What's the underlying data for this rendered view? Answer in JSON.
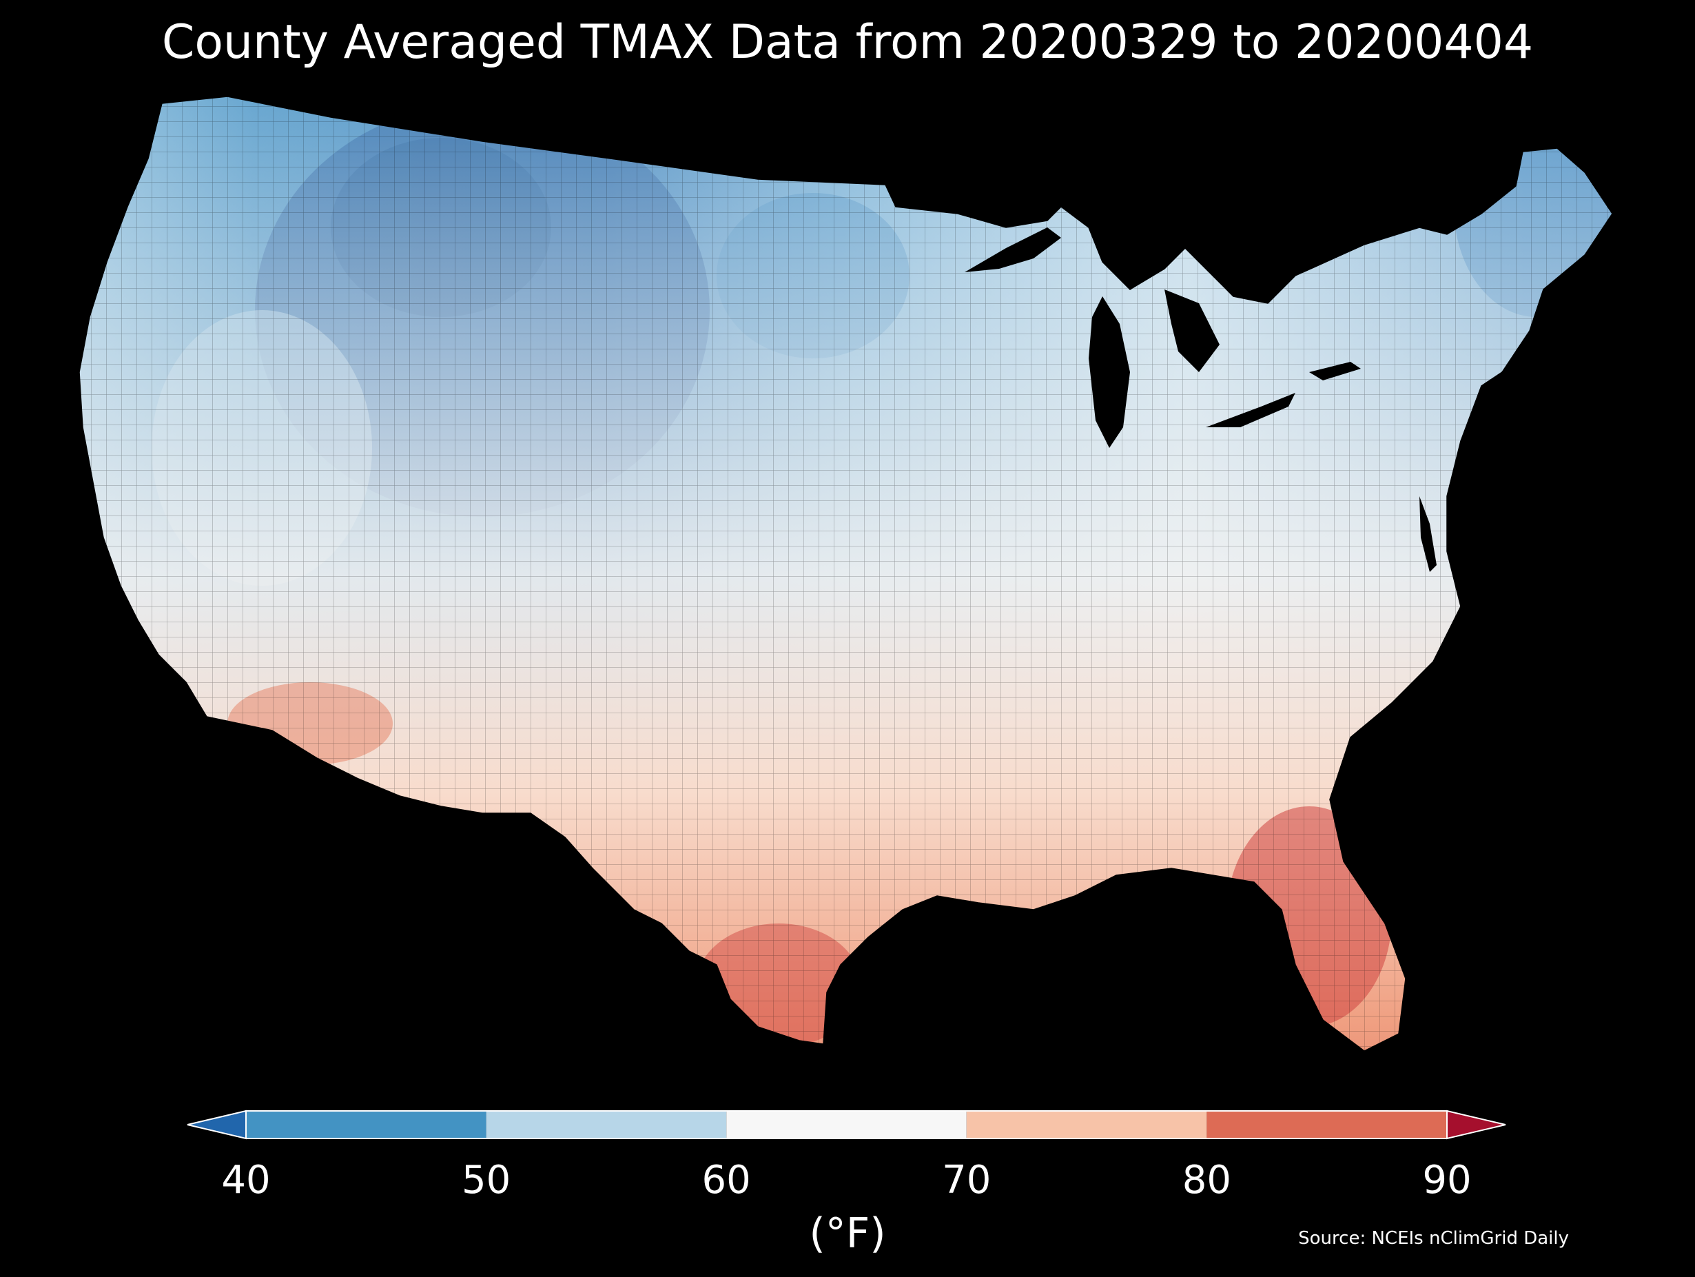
{
  "title": "County Averaged TMAX Data from 20200329 to 20200404",
  "source": "Source: NCEIs nClimGrid Daily",
  "colorbar": {
    "label": "(°F)",
    "ticks": [
      "40",
      "50",
      "60",
      "70",
      "80",
      "90"
    ],
    "bins": [
      {
        "range": "<40",
        "color": "#2166ac"
      },
      {
        "range": "40-50",
        "color": "#4393c3"
      },
      {
        "range": "50-60",
        "color": "#b7d6e8"
      },
      {
        "range": "60-70",
        "color": "#f7f7f7"
      },
      {
        "range": "70-80",
        "color": "#f7c3a8"
      },
      {
        "range": "80-90",
        "color": "#dd6b55"
      },
      {
        "range": ">90",
        "color": "#a50f2d"
      }
    ]
  },
  "map": {
    "region": "Contiguous United States",
    "variable": "TMAX",
    "units": "°F",
    "background": "#000000"
  }
}
